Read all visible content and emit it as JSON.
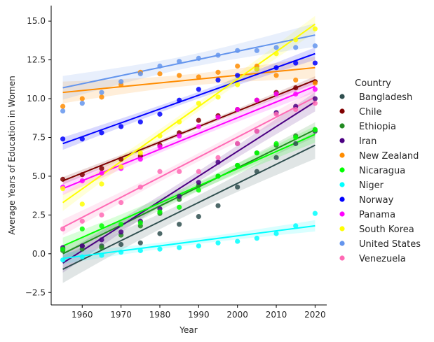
{
  "chart_data": {
    "type": "scatter",
    "xlabel": "Year",
    "ylabel": "Average Years of Education in Women",
    "xlim": [
      1952,
      2023
    ],
    "ylim": [
      -3.3,
      16.0
    ],
    "xticks": [
      1960,
      1970,
      1980,
      1990,
      2000,
      2010,
      2020
    ],
    "yticks": [
      -2.5,
      0.0,
      2.5,
      5.0,
      7.5,
      10.0,
      12.5,
      15.0
    ],
    "legend_title": "Country",
    "legend_position": "right",
    "x": [
      1955,
      1960,
      1965,
      1970,
      1975,
      1980,
      1985,
      1990,
      1995,
      2000,
      2005,
      2010,
      2015,
      2020
    ],
    "series": [
      {
        "name": "Bangladesh",
        "color": "#2f4f4f",
        "values": [
          0.3,
          0.5,
          0.5,
          0.6,
          0.7,
          1.3,
          1.9,
          2.4,
          3.1,
          4.3,
          5.3,
          6.2,
          7.1,
          7.9
        ],
        "fit": [
          -1.0,
          7.0
        ]
      },
      {
        "name": "Chile",
        "color": "#800000",
        "values": [
          4.8,
          5.1,
          5.5,
          6.1,
          6.3,
          7.0,
          7.8,
          8.6,
          8.9,
          9.3,
          9.9,
          10.4,
          10.7,
          11.1
        ],
        "fit": [
          4.7,
          11.2
        ]
      },
      {
        "name": "Ethiopia",
        "color": "#228b22",
        "values": [
          0.2,
          0.3,
          0.4,
          1.2,
          1.8,
          2.6,
          3.5,
          4.4,
          5.0,
          5.7,
          6.5,
          7.0,
          7.6,
          8.0
        ],
        "fit": [
          0.0,
          8.0
        ]
      },
      {
        "name": "Iran",
        "color": "#4b0082",
        "values": [
          0.4,
          0.5,
          0.9,
          1.4,
          2.1,
          2.9,
          3.7,
          4.6,
          5.9,
          7.1,
          7.9,
          9.1,
          9.5,
          10.0
        ],
        "fit": [
          -0.6,
          9.8
        ]
      },
      {
        "name": "New Zealand",
        "color": "#ff8c00",
        "values": [
          9.5,
          10.0,
          10.1,
          10.9,
          11.7,
          11.6,
          11.5,
          11.4,
          11.7,
          12.1,
          12.1,
          11.5,
          11.2,
          11.0
        ],
        "fit": [
          10.4,
          12.0
        ]
      },
      {
        "name": "Nicaragua",
        "color": "#00ff00",
        "values": [
          0.3,
          1.6,
          1.8,
          1.9,
          2.0,
          2.7,
          3.0,
          4.1,
          5.0,
          5.7,
          6.5,
          7.1,
          7.5,
          8.0
        ],
        "fit": [
          0.5,
          7.7
        ]
      },
      {
        "name": "Niger",
        "color": "#00ffff",
        "values": [
          -0.4,
          -0.2,
          -0.1,
          0.1,
          0.2,
          0.3,
          0.4,
          0.5,
          0.7,
          0.8,
          1.0,
          1.3,
          1.8,
          2.6
        ],
        "fit": [
          -0.3,
          1.8
        ]
      },
      {
        "name": "Norway",
        "color": "#0000ff",
        "values": [
          7.4,
          7.4,
          7.8,
          8.2,
          8.5,
          9.0,
          9.9,
          10.6,
          11.2,
          11.5,
          11.9,
          12.0,
          12.3,
          12.3
        ],
        "fit": [
          7.1,
          12.9
        ]
      },
      {
        "name": "Panama",
        "color": "#ff00ff",
        "values": [
          4.3,
          4.7,
          5.2,
          5.5,
          6.1,
          6.9,
          7.6,
          8.2,
          8.8,
          9.3,
          9.9,
          10.3,
          10.3,
          10.6
        ],
        "fit": [
          4.2,
          10.8
        ]
      },
      {
        "name": "South Korea",
        "color": "#ffff00",
        "values": [
          4.2,
          3.2,
          4.5,
          5.6,
          6.5,
          7.6,
          8.5,
          9.7,
          10.1,
          10.9,
          11.9,
          12.9,
          13.8,
          14.5
        ],
        "fit": [
          3.3,
          14.8
        ]
      },
      {
        "name": "United States",
        "color": "#6495ed",
        "values": [
          9.2,
          9.7,
          10.4,
          11.1,
          11.6,
          12.1,
          12.4,
          12.6,
          12.8,
          13.1,
          13.1,
          13.3,
          13.3,
          13.4
        ],
        "fit": [
          10.7,
          14.1
        ]
      },
      {
        "name": "Venezuela",
        "color": "#ff69b4",
        "values": [
          1.6,
          2.1,
          2.5,
          3.3,
          4.3,
          5.3,
          5.3,
          5.3,
          6.2,
          7.1,
          7.9,
          9.0,
          9.3,
          9.7
        ],
        "fit": [
          1.7,
          10.1
        ]
      }
    ]
  }
}
